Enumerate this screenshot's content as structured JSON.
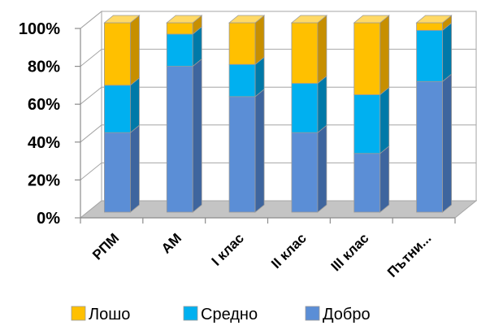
{
  "chart_data": {
    "type": "bar",
    "stacked": true,
    "percent": true,
    "categories": [
      "РПМ",
      "АМ",
      "I клас",
      "II клас",
      "III клас",
      "Пътни..."
    ],
    "series": [
      {
        "name": "Добро",
        "values": [
          42,
          77,
          61,
          42,
          31,
          69
        ],
        "color": "#5B8ED6",
        "side": "#3E659E",
        "top": "#86ADE5"
      },
      {
        "name": "Средно",
        "values": [
          25,
          17,
          17,
          26,
          31,
          27
        ],
        "color": "#00B0F0",
        "side": "#0079A8",
        "top": "#5BD3FF"
      },
      {
        "name": "Лошо",
        "values": [
          33,
          6,
          22,
          32,
          38,
          4
        ],
        "color": "#FFC000",
        "side": "#C78F00",
        "top": "#FFD966"
      }
    ],
    "ylim": [
      0,
      100
    ],
    "yticks": [
      "0%",
      "20%",
      "40%",
      "60%",
      "80%",
      "100%"
    ],
    "grid": true,
    "legend": "bottom",
    "legend_order": [
      "Лошо",
      "Средно",
      "Добро"
    ]
  }
}
